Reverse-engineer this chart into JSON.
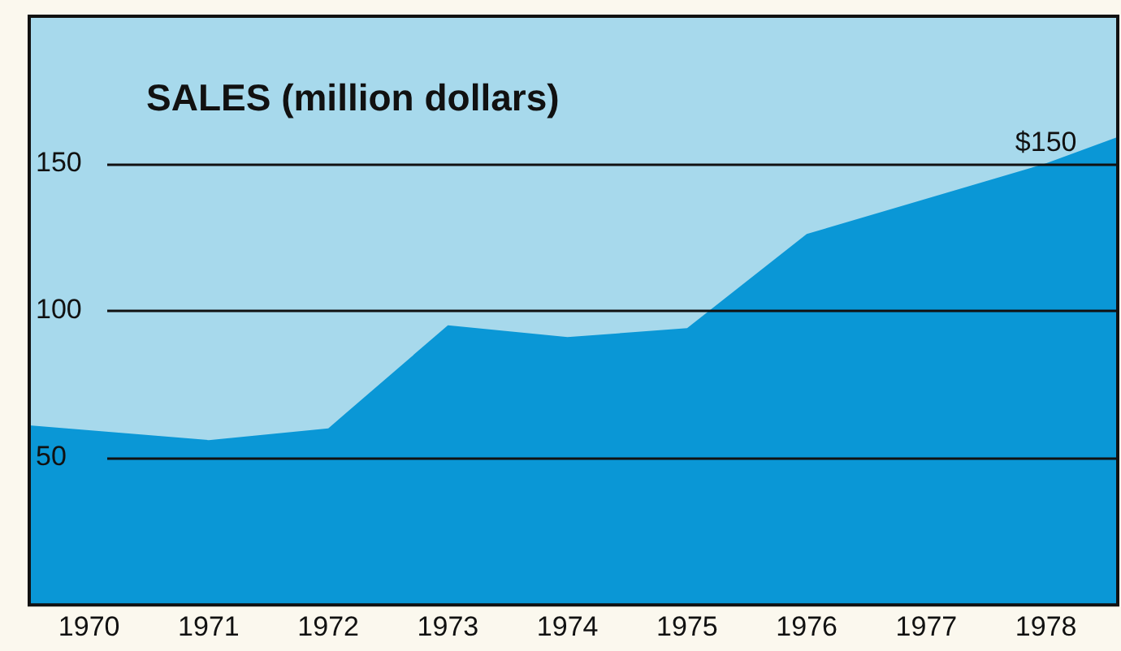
{
  "chart_data": {
    "type": "area",
    "title": "SALES (million dollars)",
    "x": [
      1969.5,
      1971,
      1972,
      1973,
      1974,
      1975,
      1976,
      1978,
      1978.6
    ],
    "series": [
      {
        "color": "#0a97d6",
        "values": [
          61,
          56,
          60,
          95,
          91,
          94,
          126,
          150,
          159
        ]
      }
    ],
    "xlim": [
      1969.5,
      1978.6
    ],
    "xticks": [
      1970,
      1971,
      1972,
      1973,
      1974,
      1975,
      1976,
      1977,
      1978
    ],
    "ylim": [
      0,
      200
    ],
    "yticks": [
      50,
      100,
      150
    ],
    "grid": "y",
    "legend": false,
    "annotations": [
      {
        "text": "$150",
        "x": 1978,
        "y": 150
      }
    ]
  }
}
